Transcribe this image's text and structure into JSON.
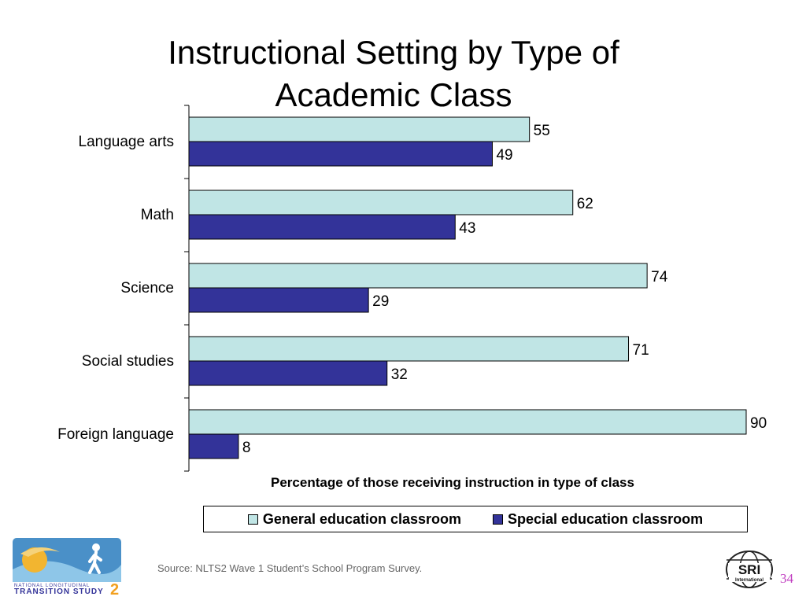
{
  "title_line1": "Instructional Setting by Type of",
  "title_line2": "Academic Class",
  "colors": {
    "general": "#c0e5e5",
    "special": "#333399"
  },
  "chart_data": {
    "type": "bar",
    "orientation": "horizontal",
    "categories": [
      "Language arts",
      "Math",
      "Science",
      "Social studies",
      "Foreign language"
    ],
    "series": [
      {
        "name": "General education classroom",
        "values": [
          55,
          62,
          74,
          71,
          90
        ]
      },
      {
        "name": "Special education classroom",
        "values": [
          49,
          43,
          29,
          32,
          8
        ]
      }
    ],
    "xlabel": "Percentage of those receiving instruction in type of class",
    "ylabel": "",
    "xlim": [
      0,
      90
    ],
    "grid": false,
    "legend": "bottom"
  },
  "source_text": "Source: NLTS2 Wave 1 Student’s School Program Survey.",
  "page_number": "34",
  "logos": {
    "nlts2": {
      "line1": "NATIONAL LONGITUDINAL",
      "line2": "TRANSITION STUDY",
      "mark": "2"
    },
    "sri": {
      "big": "SRI",
      "small": "International"
    }
  }
}
